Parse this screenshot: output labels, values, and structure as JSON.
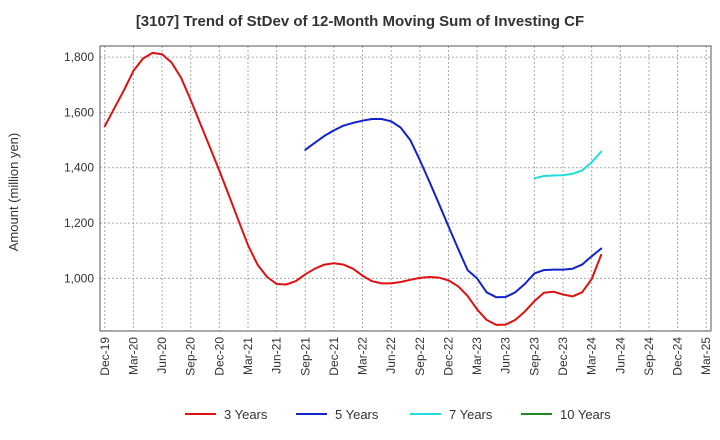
{
  "chart_data": {
    "type": "line",
    "title": "[3107]  Trend of StDev of 12-Month Moving Sum of Investing CF",
    "xlabel": "",
    "ylabel": "Amount (million yen)",
    "ylim": [
      810,
      1840
    ],
    "yticks": [
      1000,
      1200,
      1400,
      1600,
      1800
    ],
    "ytick_labels": [
      "1,000",
      "1,200",
      "1,400",
      "1,600",
      "1,800"
    ],
    "grid": true,
    "legend_position": "bottom",
    "x_tick_labels": [
      "Dec-19",
      "Mar-20",
      "Jun-20",
      "Sep-20",
      "Dec-20",
      "Mar-21",
      "Jun-21",
      "Sep-21",
      "Dec-21",
      "Mar-22",
      "Jun-22",
      "Sep-22",
      "Dec-22",
      "Mar-23",
      "Jun-23",
      "Sep-23",
      "Dec-23",
      "Mar-24",
      "Jun-24",
      "Sep-24",
      "Dec-24",
      "Mar-25"
    ],
    "months": [
      "Dec-19",
      "Jan-20",
      "Feb-20",
      "Mar-20",
      "Apr-20",
      "May-20",
      "Jun-20",
      "Jul-20",
      "Aug-20",
      "Sep-20",
      "Oct-20",
      "Nov-20",
      "Dec-20",
      "Jan-21",
      "Feb-21",
      "Mar-21",
      "Apr-21",
      "May-21",
      "Jun-21",
      "Jul-21",
      "Aug-21",
      "Sep-21",
      "Oct-21",
      "Nov-21",
      "Dec-21",
      "Jan-22",
      "Feb-22",
      "Mar-22",
      "Apr-22",
      "May-22",
      "Jun-22",
      "Jul-22",
      "Aug-22",
      "Sep-22",
      "Oct-22",
      "Nov-22",
      "Dec-22",
      "Jan-23",
      "Feb-23",
      "Mar-23",
      "Apr-23",
      "May-23",
      "Jun-23",
      "Jul-23",
      "Aug-23",
      "Sep-23",
      "Oct-23",
      "Nov-23",
      "Dec-23",
      "Jan-24",
      "Feb-24",
      "Mar-24",
      "Apr-24",
      "May-24",
      "Jun-24",
      "Jul-24",
      "Aug-24",
      "Sep-24",
      "Oct-24",
      "Nov-24",
      "Dec-24",
      "Jan-25",
      "Feb-25",
      "Mar-25"
    ],
    "series": [
      {
        "name": "3 Years",
        "color": "#dd1111",
        "values": [
          1550,
          1615,
          1680,
          1750,
          1795,
          1815,
          1810,
          1780,
          1725,
          1645,
          1560,
          1475,
          1390,
          1300,
          1210,
          1120,
          1050,
          1005,
          980,
          978,
          990,
          1015,
          1035,
          1050,
          1055,
          1050,
          1035,
          1010,
          990,
          982,
          982,
          987,
          995,
          1002,
          1005,
          1003,
          993,
          972,
          937,
          888,
          850,
          832,
          833,
          850,
          880,
          918,
          948,
          952,
          942,
          935,
          950,
          998,
          1085,
          null,
          null,
          null,
          null,
          null,
          null,
          null,
          null,
          null,
          null,
          null
        ]
      },
      {
        "name": "5 Years",
        "color": "#1122cc",
        "values": [
          null,
          null,
          null,
          null,
          null,
          null,
          null,
          null,
          null,
          null,
          null,
          null,
          null,
          null,
          null,
          null,
          null,
          null,
          null,
          null,
          null,
          1465,
          1490,
          1515,
          1535,
          1552,
          1562,
          1570,
          1576,
          1576,
          1568,
          1545,
          1500,
          1428,
          1350,
          1270,
          1188,
          1108,
          1030,
          1000,
          950,
          932,
          933,
          950,
          980,
          1018,
          1030,
          1032,
          1032,
          1035,
          1050,
          1080,
          1108,
          null,
          null,
          null,
          null,
          null,
          null,
          null,
          null,
          null,
          null,
          null
        ]
      },
      {
        "name": "7 Years",
        "color": "#22dddd",
        "values": [
          null,
          null,
          null,
          null,
          null,
          null,
          null,
          null,
          null,
          null,
          null,
          null,
          null,
          null,
          null,
          null,
          null,
          null,
          null,
          null,
          null,
          null,
          null,
          null,
          null,
          null,
          null,
          null,
          null,
          null,
          null,
          null,
          null,
          null,
          null,
          null,
          null,
          null,
          null,
          null,
          null,
          null,
          null,
          null,
          null,
          1362,
          1370,
          1372,
          1373,
          1378,
          1390,
          1420,
          1458,
          null,
          null,
          null,
          null,
          null,
          null,
          null,
          null,
          null,
          null,
          null
        ]
      },
      {
        "name": "10 Years",
        "color": "#228822",
        "values": []
      }
    ]
  }
}
